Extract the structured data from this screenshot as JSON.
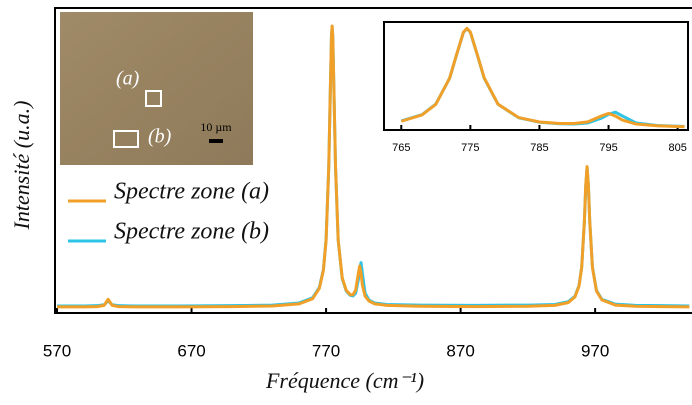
{
  "chart_data": [
    {
      "type": "line",
      "x_label": "Fréquence (cm⁻¹)",
      "y_label": "Intensité (u.a.)",
      "x": [
        570,
        590,
        600,
        605,
        608,
        611,
        616,
        630,
        660,
        700,
        730,
        750,
        760,
        765,
        768,
        770,
        772,
        773,
        774,
        774.5,
        775,
        776,
        777,
        779,
        782,
        785,
        788,
        790,
        792,
        794,
        795,
        796,
        797,
        799,
        802,
        806,
        815,
        840,
        880,
        920,
        940,
        950,
        955,
        958,
        960,
        962,
        963,
        964,
        965,
        966,
        968,
        971,
        975,
        985,
        1000,
        1020,
        1040
      ],
      "series": [
        {
          "name": "Spectre zone (b)",
          "color": "#2ec4e6",
          "values": [
            2.3,
            2.3,
            2.4,
            2.7,
            4.0,
            2.7,
            2.4,
            2.3,
            2.3,
            2.4,
            2.6,
            3.3,
            5.0,
            8.4,
            14.2,
            24.0,
            48.0,
            69.5,
            90.4,
            93.9,
            90.5,
            69.6,
            48.0,
            23.8,
            11.3,
            7.2,
            5.8,
            5.6,
            6.5,
            11.0,
            14.5,
            16.5,
            13.0,
            6.5,
            4.2,
            3.3,
            2.8,
            2.6,
            2.5,
            2.6,
            2.8,
            3.7,
            5.5,
            9.0,
            15.0,
            30.0,
            41.5,
            47.8,
            41.5,
            30.0,
            15.0,
            7.4,
            4.5,
            2.9,
            2.5,
            2.4,
            2.3
          ]
        },
        {
          "name": "Spectre zone (a)",
          "color": "#f0a028",
          "values": [
            2.0,
            2.0,
            2.1,
            2.5,
            4.5,
            2.5,
            2.1,
            2.0,
            2.0,
            2.1,
            2.3,
            3.0,
            4.7,
            8.1,
            14.0,
            23.8,
            48.1,
            69.7,
            90.6,
            94.1,
            90.7,
            69.8,
            48.3,
            23.9,
            11.5,
            7.4,
            6.0,
            6.0,
            7.5,
            13.1,
            15.4,
            12.9,
            9.2,
            5.5,
            3.9,
            3.0,
            2.5,
            2.2,
            2.1,
            2.2,
            2.5,
            3.4,
            5.3,
            8.8,
            14.9,
            30.0,
            41.7,
            48.0,
            41.7,
            30.0,
            14.9,
            7.2,
            4.3,
            2.6,
            2.2,
            2.1,
            2.0
          ]
        }
      ],
      "xlim": [
        568.5,
        1042
      ],
      "xticks": [
        570,
        670,
        770,
        870,
        970
      ],
      "ylim": [
        0,
        100
      ],
      "legend": "left"
    },
    {
      "type": "line",
      "x": [
        765,
        768,
        770,
        772,
        773,
        774,
        774.5,
        775,
        776,
        777,
        779,
        782,
        785,
        788,
        790,
        792,
        794,
        795,
        796,
        797,
        799,
        802,
        806
      ],
      "series": [
        {
          "name": "Spectre zone (b)",
          "color": "#2ec4e6",
          "values": [
            8.4,
            14.2,
            24.0,
            48.0,
            69.5,
            90.4,
            93.9,
            90.5,
            69.6,
            48.0,
            23.8,
            11.3,
            7.2,
            5.8,
            5.6,
            6.5,
            11.0,
            14.5,
            16.5,
            13.0,
            6.5,
            4.2,
            3.3
          ]
        },
        {
          "name": "Spectre zone (a)",
          "color": "#f0a028",
          "values": [
            8.1,
            14.0,
            23.8,
            48.1,
            69.7,
            90.6,
            94.1,
            90.7,
            69.8,
            48.3,
            23.9,
            11.5,
            7.4,
            6.0,
            6.0,
            7.5,
            13.1,
            15.4,
            12.9,
            9.2,
            5.5,
            3.9,
            3.0
          ]
        }
      ],
      "xlim": [
        762.5,
        806.5
      ],
      "xticks": [
        765,
        775,
        785,
        795,
        805
      ],
      "ylim": [
        0,
        100
      ]
    }
  ],
  "micrograph": {
    "labels": [
      "(a)",
      "(b)"
    ],
    "scale_bar": "10 µm"
  }
}
